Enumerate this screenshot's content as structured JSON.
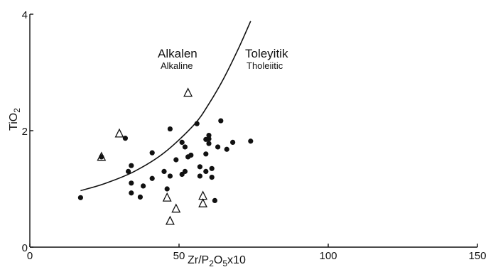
{
  "chart_data": {
    "type": "scatter",
    "xlabel": "Zr/P2O5x10",
    "ylabel": "TiO2",
    "xlim": [
      0,
      150
    ],
    "ylim": [
      0,
      4
    ],
    "x_ticks": [
      "0",
      "50",
      "100",
      "150"
    ],
    "y_ticks": [
      "0",
      "2",
      "4"
    ],
    "grid": false,
    "series": [
      {
        "marker": "filled-circle",
        "points": [
          [
            17,
            0.85
          ],
          [
            24,
            1.55
          ],
          [
            32,
            1.87
          ],
          [
            33,
            1.3
          ],
          [
            34,
            1.4
          ],
          [
            34,
            1.1
          ],
          [
            34,
            0.93
          ],
          [
            37,
            0.86
          ],
          [
            38,
            1.05
          ],
          [
            41,
            1.62
          ],
          [
            41,
            1.18
          ],
          [
            45,
            1.3
          ],
          [
            46,
            1.0
          ],
          [
            47,
            2.03
          ],
          [
            47,
            1.22
          ],
          [
            49,
            1.5
          ],
          [
            51,
            1.8
          ],
          [
            51,
            1.25
          ],
          [
            52,
            1.72
          ],
          [
            52,
            1.3
          ],
          [
            53,
            1.55
          ],
          [
            54,
            1.58
          ],
          [
            56,
            2.12
          ],
          [
            57,
            1.38
          ],
          [
            57,
            1.22
          ],
          [
            59,
            1.85
          ],
          [
            59,
            1.6
          ],
          [
            59,
            1.3
          ],
          [
            60,
            1.92
          ],
          [
            60,
            1.86
          ],
          [
            60,
            1.78
          ],
          [
            61,
            1.35
          ],
          [
            61,
            1.2
          ],
          [
            62,
            0.8
          ],
          [
            63,
            1.72
          ],
          [
            64,
            2.17
          ],
          [
            66,
            1.68
          ],
          [
            68,
            1.8
          ],
          [
            74,
            1.82
          ]
        ]
      },
      {
        "marker": "open-triangle",
        "points": [
          [
            24,
            1.55
          ],
          [
            30,
            1.95
          ],
          [
            46,
            0.85
          ],
          [
            47,
            0.45
          ],
          [
            49,
            0.66
          ],
          [
            53,
            2.65
          ],
          [
            58,
            0.88
          ],
          [
            58,
            0.75
          ]
        ]
      }
    ],
    "boundary_curve": {
      "points": [
        [
          17,
          0.97
        ],
        [
          25,
          1.09
        ],
        [
          35,
          1.3
        ],
        [
          45,
          1.62
        ],
        [
          55,
          2.1
        ],
        [
          60,
          2.46
        ],
        [
          65,
          2.9
        ],
        [
          70,
          3.42
        ],
        [
          74,
          3.88
        ]
      ]
    },
    "annotations": {
      "left_region": {
        "main": "Alkalen",
        "sub": "Alkaline"
      },
      "right_region": {
        "main": "Toleyitik",
        "sub": "Tholeiitic"
      }
    }
  }
}
